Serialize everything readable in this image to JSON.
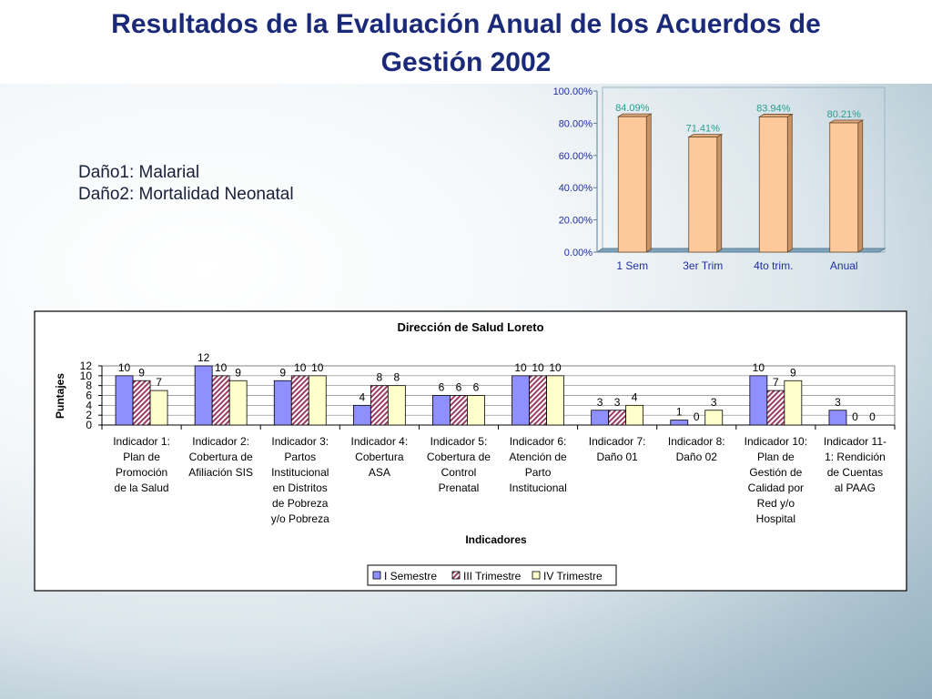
{
  "title": "Resultados de la Evaluación Anual de los Acuerdos de Gestión 2002",
  "title_lines": [
    "Resultados de la Evaluación Anual de los Acuerdos de",
    "Gestión 2002"
  ],
  "legend_notes": [
    "Daño1: Malarial",
    "Daño2: Mortalidad Neonatal"
  ],
  "chart_data": [
    {
      "type": "bar",
      "title": "",
      "categories": [
        "1 Sem",
        "3er Trim",
        "4to trim.",
        "Anual"
      ],
      "values": [
        84.09,
        71.41,
        83.94,
        80.21
      ],
      "value_labels": [
        "84.09%",
        "71.41%",
        "83.94%",
        "80.21%"
      ],
      "ylim": [
        0,
        100
      ],
      "yticks": [
        "0.00%",
        "20.00%",
        "40.00%",
        "60.00%",
        "80.00%",
        "100.00%"
      ],
      "xlabel": "",
      "ylabel": "",
      "colors": {
        "bar": "#fdc99a",
        "label": "#2a9d8f",
        "axis_text": "#1f2f9f"
      }
    },
    {
      "type": "bar",
      "title": "Dirección de Salud Loreto",
      "xlabel": "Indicadores",
      "ylabel": "Puntajes",
      "ylim": [
        0,
        12
      ],
      "yticks": [
        "0",
        "2",
        "4",
        "6",
        "8",
        "10",
        "12"
      ],
      "categories": [
        [
          "Indicador 1:",
          "Plan de",
          "Promoción",
          "de la Salud"
        ],
        [
          "Indicador 2:",
          "Cobertura de",
          "Afiliación SIS"
        ],
        [
          "Indicador 3:",
          "Partos",
          "Institucional",
          "en Distritos",
          "de Pobreza",
          "y/o Pobreza"
        ],
        [
          "Indicador 4:",
          "Cobertura",
          "ASA"
        ],
        [
          "Indicador 5:",
          "Cobertura de",
          "Control",
          "Prenatal"
        ],
        [
          "Indicador 6:",
          "Atención de",
          "Parto",
          "Institucional"
        ],
        [
          "Indicador 7:",
          "Daño 01"
        ],
        [
          "Indicador 8:",
          "Daño 02"
        ],
        [
          "Indicador 10:",
          "Plan de",
          "Gestión de",
          "Calidad por",
          "Red y/o",
          "Hospital"
        ],
        [
          "Indicador 11-",
          "1: Rendición",
          "de Cuentas",
          "al PAAG"
        ]
      ],
      "series": [
        {
          "name": "I Semestre",
          "values": [
            10,
            12,
            9,
            4,
            6,
            10,
            3,
            1,
            10,
            3
          ],
          "color": "#8f8fff",
          "pattern": "solid"
        },
        {
          "name": "III Trimestre",
          "values": [
            9,
            10,
            10,
            8,
            6,
            10,
            3,
            0,
            7,
            0
          ],
          "color": "#9b3b63",
          "pattern": "hatch"
        },
        {
          "name": "IV Trimestre",
          "values": [
            7,
            9,
            10,
            8,
            6,
            10,
            4,
            3,
            9,
            0
          ],
          "color": "#ffffcc",
          "pattern": "solid"
        }
      ],
      "legend": "bottom"
    }
  ]
}
